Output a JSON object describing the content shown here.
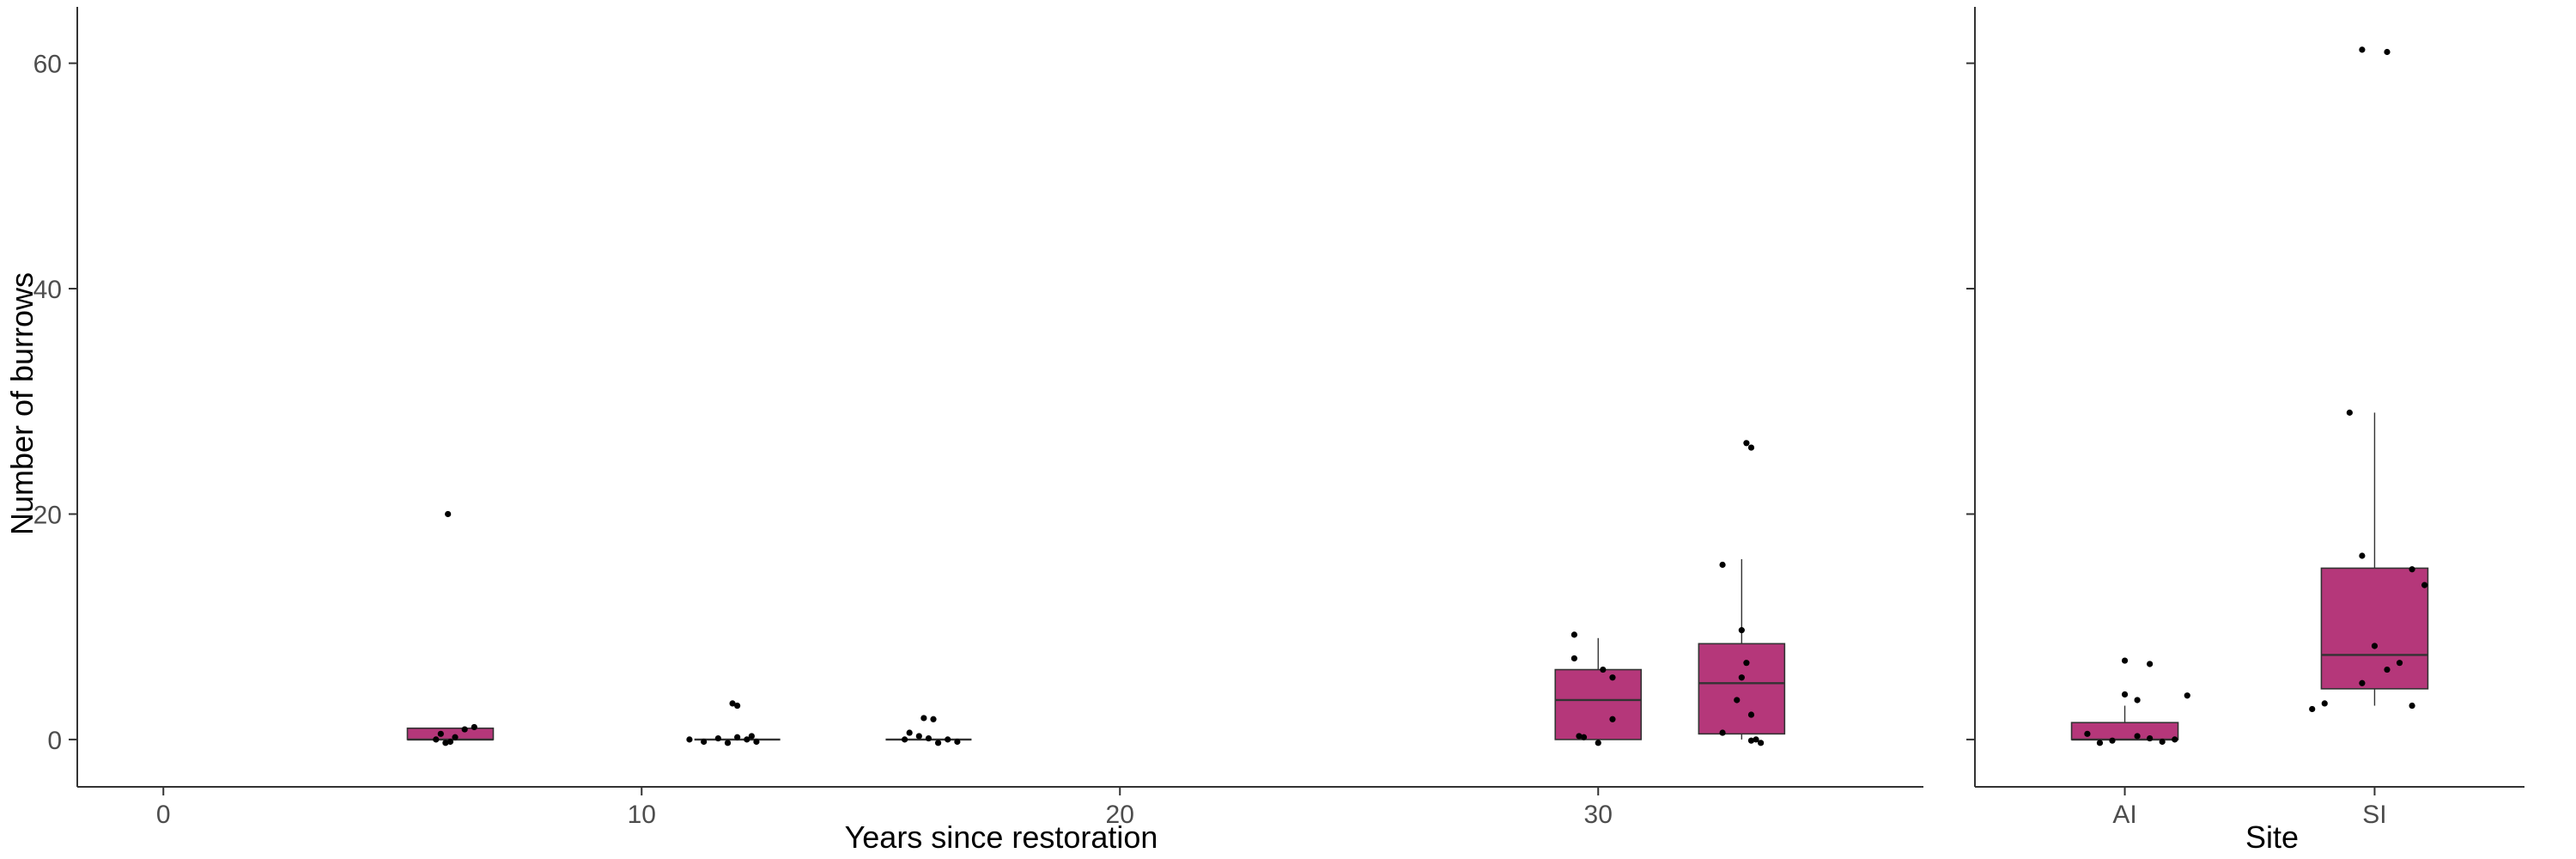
{
  "colors": {
    "box_fill": "#b5377a",
    "box_stroke": "#333333",
    "point": "#000000",
    "axis": "#333333"
  },
  "chart_data": [
    {
      "type": "box",
      "xlabel": "Years since restoration",
      "ylabel": "Number of burrows",
      "xlim": [
        -1.8,
        36.8
      ],
      "ylim": [
        -4.2,
        65
      ],
      "x_ticks": [
        0,
        10,
        20,
        30
      ],
      "x_tick_labels": [
        "0",
        "10",
        "20",
        "30"
      ],
      "y_ticks": [
        0,
        20,
        40,
        60
      ],
      "y_tick_labels": [
        "0",
        "20",
        "40",
        "60"
      ],
      "grid": false,
      "boxes": [
        {
          "x": 6,
          "q1": 0,
          "median": 0,
          "q3": 1,
          "whisker_low": 0,
          "whisker_high": 1,
          "points": [
            [
              5.7,
              0
            ],
            [
              5.9,
              -0.3
            ],
            [
              6.1,
              0.2
            ],
            [
              6.3,
              0.9
            ],
            [
              6.5,
              1.1
            ],
            [
              5.8,
              0.5
            ],
            [
              6.0,
              -0.2
            ],
            [
              5.95,
              20
            ]
          ]
        },
        {
          "x": 12,
          "q1": 0,
          "median": 0,
          "q3": 0,
          "whisker_low": 0,
          "whisker_high": 0,
          "points": [
            [
              11.0,
              0
            ],
            [
              11.3,
              -0.2
            ],
            [
              11.6,
              0.1
            ],
            [
              11.8,
              -0.3
            ],
            [
              12.0,
              0.2
            ],
            [
              12.2,
              0
            ],
            [
              12.4,
              -0.2
            ],
            [
              12.3,
              0.3
            ],
            [
              11.9,
              3.2
            ],
            [
              12.0,
              3.0
            ]
          ]
        },
        {
          "x": 16,
          "q1": 0,
          "median": 0,
          "q3": 0,
          "whisker_low": 0,
          "whisker_high": 0,
          "points": [
            [
              15.5,
              0
            ],
            [
              15.8,
              0.3
            ],
            [
              15.9,
              1.9
            ],
            [
              16.1,
              1.8
            ],
            [
              16.2,
              -0.3
            ],
            [
              16.4,
              0
            ],
            [
              16.6,
              -0.2
            ],
            [
              15.6,
              0.6
            ],
            [
              16.0,
              0.1
            ]
          ]
        },
        {
          "x": 30,
          "q1": 0,
          "median": 3.5,
          "q3": 6.2,
          "whisker_low": 0,
          "whisker_high": 9,
          "points": [
            [
              29.5,
              9.3
            ],
            [
              29.5,
              7.2
            ],
            [
              29.7,
              0.2
            ],
            [
              29.6,
              0.3
            ],
            [
              30.1,
              6.2
            ],
            [
              30.3,
              5.5
            ],
            [
              30.3,
              1.8
            ],
            [
              30.0,
              -0.3
            ]
          ]
        },
        {
          "x": 33,
          "q1": 0.5,
          "median": 5,
          "q3": 8.5,
          "whisker_low": 0,
          "whisker_high": 16,
          "points": [
            [
              33.1,
              26.3
            ],
            [
              33.2,
              25.9
            ],
            [
              32.6,
              15.5
            ],
            [
              33.0,
              9.7
            ],
            [
              33.1,
              6.8
            ],
            [
              33.0,
              5.5
            ],
            [
              32.9,
              3.5
            ],
            [
              33.2,
              2.2
            ],
            [
              32.6,
              0.6
            ],
            [
              33.3,
              0.0
            ],
            [
              33.4,
              -0.3
            ],
            [
              33.2,
              -0.1
            ]
          ]
        }
      ]
    },
    {
      "type": "box",
      "xlabel": "Site",
      "ylabel": "",
      "categories": [
        "AI",
        "SI"
      ],
      "ylim": [
        -4.2,
        65
      ],
      "y_ticks": [
        0,
        20,
        40,
        60
      ],
      "grid": false,
      "boxes": [
        {
          "category": "AI",
          "q1": 0,
          "median": 0,
          "q3": 1.5,
          "whisker_low": 0,
          "whisker_high": 3,
          "points": [
            [
              0.0,
              7.0
            ],
            [
              0.1,
              6.7
            ],
            [
              0.0,
              4.0
            ],
            [
              0.05,
              3.5
            ],
            [
              0.25,
              3.9
            ],
            [
              -0.15,
              0.5
            ],
            [
              -0.05,
              -0.1
            ],
            [
              0.05,
              0.3
            ],
            [
              0.15,
              -0.2
            ],
            [
              0.2,
              0.0
            ],
            [
              -0.1,
              -0.3
            ],
            [
              0.1,
              0.1
            ]
          ]
        },
        {
          "category": "SI",
          "q1": 4.5,
          "median": 7.5,
          "q3": 15.2,
          "whisker_low": 3,
          "whisker_high": 29,
          "points": [
            [
              -0.05,
              61.2
            ],
            [
              0.05,
              61.0
            ],
            [
              -0.1,
              29.0
            ],
            [
              -0.05,
              16.3
            ],
            [
              0.15,
              15.1
            ],
            [
              0.2,
              13.7
            ],
            [
              0.0,
              8.3
            ],
            [
              0.1,
              6.8
            ],
            [
              0.05,
              6.2
            ],
            [
              -0.05,
              5.0
            ],
            [
              -0.2,
              3.2
            ],
            [
              -0.25,
              2.7
            ],
            [
              0.15,
              3.0
            ]
          ]
        }
      ]
    }
  ]
}
